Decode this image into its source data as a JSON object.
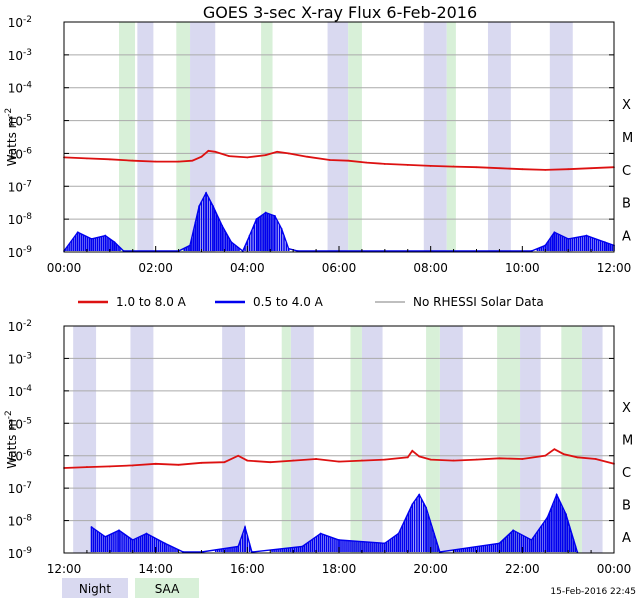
{
  "title": "GOES 3-sec X-ray Flux     6-Feb-2016",
  "colors": {
    "long": "#dd1111",
    "short": "#0000ee",
    "norhessi": "#999999",
    "night": "#d9d9f0",
    "saa": "#d8f0d8",
    "grid": "#aaaaaa",
    "axis": "#000000"
  },
  "legend": {
    "long_label": "1.0 to 8.0 A",
    "short_label": "0.5 to 4.0 A",
    "norhessi_label": "No RHESSI Solar Data"
  },
  "shading_legend": {
    "night": "Night",
    "saa": "SAA"
  },
  "timestamp": "15-Feb-2016 22:45",
  "chart_data": [
    {
      "type": "line",
      "panel": "top",
      "ylabel": "Watts m",
      "ylabel_sup": "-2",
      "yscale": "log",
      "ylim_exp": [
        -9,
        -2
      ],
      "xlim_hours": [
        0,
        12
      ],
      "xticks": [
        "00:00",
        "02:00",
        "04:00",
        "06:00",
        "08:00",
        "10:00",
        "12:00"
      ],
      "yticks": [
        {
          "base": "10",
          "exp": "-2"
        },
        {
          "base": "10",
          "exp": "-3"
        },
        {
          "base": "10",
          "exp": "-4"
        },
        {
          "base": "10",
          "exp": "-5"
        },
        {
          "base": "10",
          "exp": "-6"
        },
        {
          "base": "10",
          "exp": "-7"
        },
        {
          "base": "10",
          "exp": "-8"
        },
        {
          "base": "10",
          "exp": "-9"
        }
      ],
      "flare_classes": [
        {
          "label": "X",
          "exp": -4
        },
        {
          "label": "M",
          "exp": -5
        },
        {
          "label": "C",
          "exp": -6
        },
        {
          "label": "B",
          "exp": -7
        },
        {
          "label": "A",
          "exp": -8
        }
      ],
      "night": [
        [
          1.6,
          1.95
        ],
        [
          2.75,
          3.3
        ],
        [
          5.75,
          6.2
        ],
        [
          7.85,
          8.35
        ],
        [
          9.25,
          9.75
        ],
        [
          10.6,
          11.1
        ]
      ],
      "saa": [
        [
          1.2,
          1.55
        ],
        [
          2.45,
          2.75
        ],
        [
          4.3,
          4.55
        ],
        [
          6.2,
          6.5
        ],
        [
          8.35,
          8.55
        ]
      ],
      "series": [
        {
          "name": "1.0 to 8.0 A",
          "color_key": "long",
          "t": [
            0,
            0.5,
            1,
            1.5,
            2,
            2.5,
            2.8,
            3.0,
            3.15,
            3.3,
            3.6,
            4.0,
            4.4,
            4.65,
            4.9,
            5.3,
            5.8,
            6.2,
            6.6,
            7.0,
            7.5,
            8.0,
            8.5,
            9.0,
            9.5,
            10.0,
            10.5,
            11.0,
            11.5,
            12.0
          ],
          "logv": [
            -6.12,
            -6.15,
            -6.18,
            -6.22,
            -6.25,
            -6.25,
            -6.22,
            -6.1,
            -5.92,
            -5.95,
            -6.08,
            -6.12,
            -6.05,
            -5.95,
            -6.0,
            -6.1,
            -6.2,
            -6.22,
            -6.28,
            -6.32,
            -6.35,
            -6.38,
            -6.4,
            -6.42,
            -6.45,
            -6.48,
            -6.5,
            -6.48,
            -6.45,
            -6.42
          ]
        },
        {
          "name": "0.5 to 4.0 A",
          "color_key": "short",
          "t": [
            0,
            0.3,
            0.6,
            0.9,
            1.1,
            1.3,
            2.5,
            2.75,
            2.95,
            3.1,
            3.25,
            3.45,
            3.65,
            3.9,
            4.05,
            4.2,
            4.4,
            4.6,
            4.75,
            4.9,
            5.1,
            10.2,
            10.5,
            10.7,
            11.0,
            11.4,
            11.8,
            12.0
          ],
          "logv": [
            -9.0,
            -8.4,
            -8.6,
            -8.5,
            -8.7,
            -9.2,
            -9.5,
            -8.8,
            -7.6,
            -7.2,
            -7.6,
            -8.2,
            -8.7,
            -9.0,
            -8.5,
            -8.0,
            -7.8,
            -7.9,
            -8.3,
            -8.9,
            -9.6,
            -9.6,
            -8.8,
            -8.4,
            -8.6,
            -8.5,
            -8.7,
            -8.8
          ]
        }
      ]
    },
    {
      "type": "line",
      "panel": "bottom",
      "ylabel": "Watts m",
      "ylabel_sup": "-2",
      "yscale": "log",
      "ylim_exp": [
        -9,
        -2
      ],
      "xlim_hours": [
        12,
        24
      ],
      "xticks": [
        "12:00",
        "14:00",
        "16:00",
        "18:00",
        "20:00",
        "22:00",
        "00:00"
      ],
      "yticks": [
        {
          "base": "10",
          "exp": "-2"
        },
        {
          "base": "10",
          "exp": "-3"
        },
        {
          "base": "10",
          "exp": "-4"
        },
        {
          "base": "10",
          "exp": "-5"
        },
        {
          "base": "10",
          "exp": "-6"
        },
        {
          "base": "10",
          "exp": "-7"
        },
        {
          "base": "10",
          "exp": "-8"
        },
        {
          "base": "10",
          "exp": "-9"
        }
      ],
      "flare_classes": [
        {
          "label": "X",
          "exp": -4
        },
        {
          "label": "M",
          "exp": -5
        },
        {
          "label": "C",
          "exp": -6
        },
        {
          "label": "B",
          "exp": -7
        },
        {
          "label": "A",
          "exp": -8
        }
      ],
      "night": [
        [
          12.2,
          12.7
        ],
        [
          13.45,
          13.95
        ],
        [
          15.45,
          15.95
        ],
        [
          16.95,
          17.45
        ],
        [
          18.5,
          18.95
        ],
        [
          20.2,
          20.7
        ],
        [
          21.95,
          22.4
        ],
        [
          23.3,
          23.75
        ]
      ],
      "saa": [
        [
          16.75,
          16.95
        ],
        [
          18.25,
          18.5
        ],
        [
          19.9,
          20.2
        ],
        [
          21.45,
          21.95
        ],
        [
          22.85,
          23.3
        ]
      ],
      "series": [
        {
          "name": "1.0 to 8.0 A",
          "color_key": "long",
          "t": [
            12,
            12.5,
            13,
            13.5,
            14,
            14.5,
            15,
            15.5,
            15.8,
            16,
            16.5,
            17,
            17.5,
            18,
            18.5,
            19,
            19.5,
            19.6,
            19.75,
            20,
            20.5,
            21,
            21.5,
            22,
            22.5,
            22.7,
            22.9,
            23.2,
            23.6,
            24
          ],
          "logv": [
            -6.38,
            -6.35,
            -6.33,
            -6.3,
            -6.25,
            -6.28,
            -6.22,
            -6.2,
            -6.0,
            -6.15,
            -6.2,
            -6.15,
            -6.1,
            -6.18,
            -6.15,
            -6.12,
            -6.05,
            -5.85,
            -6.02,
            -6.12,
            -6.15,
            -6.12,
            -6.08,
            -6.1,
            -6.0,
            -5.8,
            -5.95,
            -6.05,
            -6.1,
            -6.25
          ]
        },
        {
          "name": "0.5 to 4.0 A",
          "color_key": "short",
          "t": [
            12.6,
            12.9,
            13.2,
            13.5,
            13.8,
            14.2,
            14.6,
            15.0,
            15.8,
            15.95,
            16.1,
            17.2,
            17.6,
            18.0,
            19.0,
            19.3,
            19.6,
            19.75,
            19.9,
            20.2,
            21.5,
            21.8,
            22.2,
            22.55,
            22.75,
            22.95,
            23.2
          ],
          "logv": [
            -8.2,
            -8.5,
            -8.3,
            -8.6,
            -8.4,
            -8.7,
            -9.0,
            -9.5,
            -8.8,
            -8.2,
            -9.3,
            -8.8,
            -8.4,
            -8.6,
            -8.7,
            -8.4,
            -7.5,
            -7.2,
            -7.6,
            -9.0,
            -8.7,
            -8.3,
            -8.6,
            -7.9,
            -7.2,
            -7.8,
            -9.0
          ]
        }
      ]
    }
  ]
}
